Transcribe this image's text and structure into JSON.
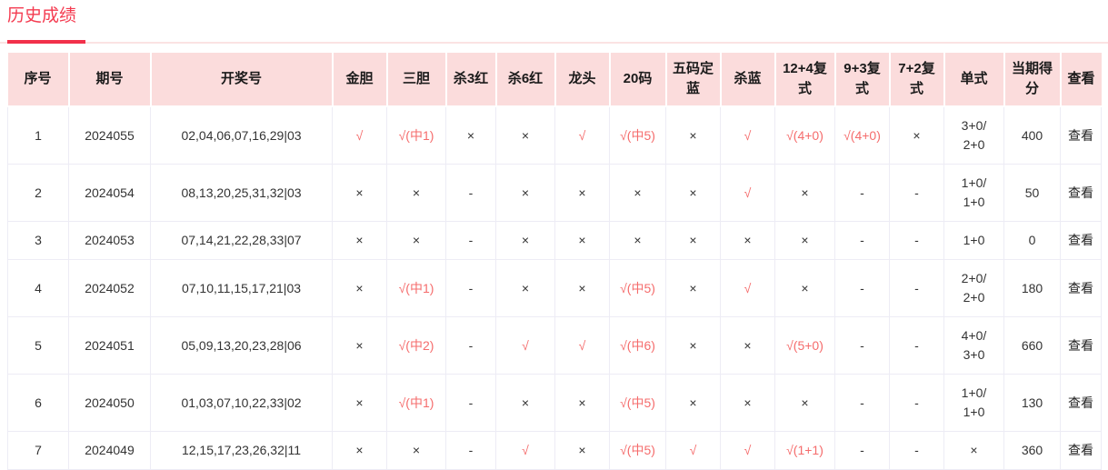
{
  "page": {
    "title": "历史成绩"
  },
  "colors": {
    "accent_red": "#f43b50",
    "hit_red": "#f56c6c",
    "header_bg": "#fbdcdc",
    "cell_border": "#edecf5",
    "text": "#333333"
  },
  "table": {
    "columns": [
      "序号",
      "期号",
      "开奖号",
      "金胆",
      "三胆",
      "杀3红",
      "杀6红",
      "龙头",
      "20码",
      "五码定蓝",
      "杀蓝",
      "12+4复式",
      "9+3复式",
      "7+2复式",
      "单式",
      "当期得分",
      "查看"
    ],
    "column_keys": [
      "seq",
      "issue",
      "numbers",
      "jindan",
      "sandan",
      "sha3red",
      "sha6red",
      "longtou",
      "ma20",
      "wumadinglan",
      "shalan",
      "fushi12-4",
      "fushi9-3",
      "fushi7-2",
      "danshi",
      "score",
      "view"
    ],
    "rows": [
      {
        "cells": [
          "1",
          "2024055",
          "02,04,06,07,16,29|03",
          "√",
          "√(中1)",
          "×",
          "×",
          "√",
          "√(中5)",
          "×",
          "√",
          "√(4+0)",
          "√(4+0)",
          "×",
          "3+0/\n2+0",
          "400",
          "查看"
        ]
      },
      {
        "cells": [
          "2",
          "2024054",
          "08,13,20,25,31,32|03",
          "×",
          "×",
          "-",
          "×",
          "×",
          "×",
          "×",
          "√",
          "×",
          "-",
          "-",
          "1+0/\n1+0",
          "50",
          "查看"
        ]
      },
      {
        "cells": [
          "3",
          "2024053",
          "07,14,21,22,28,33|07",
          "×",
          "×",
          "-",
          "×",
          "×",
          "×",
          "×",
          "×",
          "×",
          "-",
          "-",
          "1+0",
          "0",
          "查看"
        ]
      },
      {
        "cells": [
          "4",
          "2024052",
          "07,10,11,15,17,21|03",
          "×",
          "√(中1)",
          "-",
          "×",
          "×",
          "√(中5)",
          "×",
          "√",
          "×",
          "-",
          "-",
          "2+0/\n2+0",
          "180",
          "查看"
        ]
      },
      {
        "cells": [
          "5",
          "2024051",
          "05,09,13,20,23,28|06",
          "×",
          "√(中2)",
          "-",
          "√",
          "√",
          "√(中6)",
          "×",
          "×",
          "√(5+0)",
          "-",
          "-",
          "4+0/\n3+0",
          "660",
          "查看"
        ]
      },
      {
        "cells": [
          "6",
          "2024050",
          "01,03,07,10,22,33|02",
          "×",
          "√(中1)",
          "-",
          "×",
          "×",
          "√(中5)",
          "×",
          "×",
          "×",
          "-",
          "-",
          "1+0/\n1+0",
          "130",
          "查看"
        ]
      },
      {
        "cells": [
          "7",
          "2024049",
          "12,15,17,23,26,32|11",
          "×",
          "×",
          "-",
          "√",
          "×",
          "√(中5)",
          "√",
          "√",
          "√(1+1)",
          "-",
          "-",
          "×",
          "360",
          "查看"
        ]
      }
    ]
  }
}
